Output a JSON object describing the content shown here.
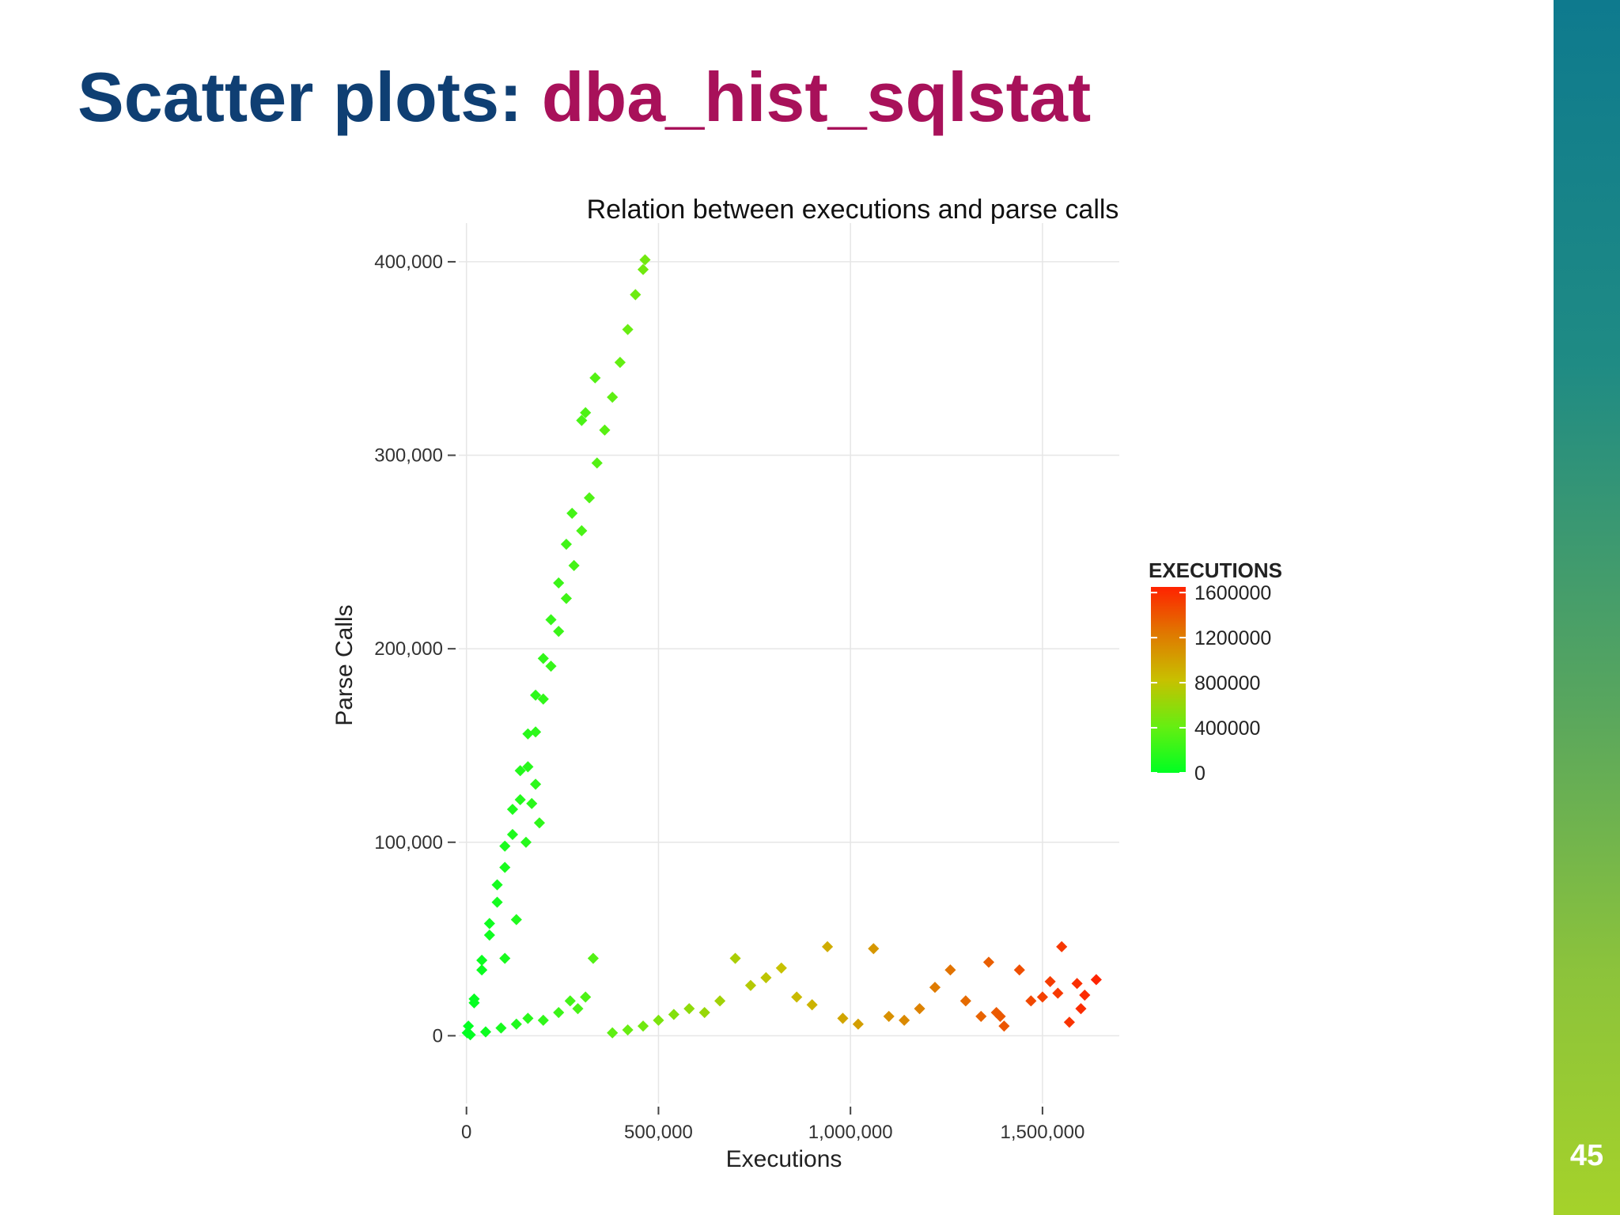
{
  "slide": {
    "title_part1": "Scatter plots: ",
    "title_part2": "dba_hist_sqlstat",
    "page_number": "45",
    "colors": {
      "title_dark": "#0f3f73",
      "title_accent": "#a8115a"
    }
  },
  "chart_data": {
    "type": "scatter",
    "title": "Relation between executions and parse calls",
    "xlabel": "Executions",
    "ylabel": "Parse Calls",
    "xlim": [
      -20000,
      1700000
    ],
    "ylim": [
      -35000,
      420000
    ],
    "xticks": [
      0,
      500000,
      1000000,
      1500000
    ],
    "xtick_labels": [
      "0",
      "500,000",
      "1,000,000",
      "1,500,000"
    ],
    "yticks": [
      0,
      100000,
      200000,
      300000,
      400000
    ],
    "ytick_labels": [
      "0",
      "100,000",
      "200,000",
      "300,000",
      "400,000"
    ],
    "grid": true,
    "legend": {
      "title": "EXECUTIONS",
      "position": "right",
      "range": [
        0,
        1650000
      ],
      "ticks": [
        0,
        400000,
        800000,
        1200000,
        1600000
      ],
      "tick_labels": [
        "0",
        "400000",
        "800000",
        "1200000",
        "1600000"
      ],
      "colors": [
        "#00ff22",
        "#66ee11",
        "#c8c000",
        "#e07800",
        "#ff2200"
      ]
    },
    "series": [
      {
        "description_points": "upper steep branch, parse calls roughly 0.87 x executions",
        "x": [
          2000,
          20000,
          40000,
          60000,
          80000,
          100000,
          120000,
          140000,
          160000,
          180000,
          200000,
          220000,
          240000,
          260000,
          280000,
          300000,
          320000,
          340000,
          360000,
          380000,
          400000,
          420000,
          440000,
          460000,
          465000,
          300000,
          310000,
          335000
        ],
        "y": [
          1500,
          17000,
          34000,
          52000,
          69000,
          87000,
          104000,
          122000,
          139000,
          157000,
          174000,
          191000,
          209000,
          226000,
          243000,
          261000,
          278000,
          296000,
          313000,
          330000,
          348000,
          365000,
          383000,
          396000,
          401000,
          318000,
          322000,
          340000
        ]
      },
      {
        "description_points": "lower steep branch, parse calls roughly 0.98 x executions",
        "x": [
          5000,
          20000,
          40000,
          60000,
          80000,
          100000,
          120000,
          140000,
          160000,
          180000,
          200000,
          220000,
          240000,
          260000,
          275000,
          100000,
          130000,
          155000,
          170000,
          180000,
          190000
        ],
        "y": [
          5000,
          19000,
          39000,
          58000,
          78000,
          98000,
          117000,
          137000,
          156000,
          176000,
          195000,
          215000,
          234000,
          254000,
          270000,
          40000,
          60000,
          100000,
          120000,
          130000,
          110000
        ]
      },
      {
        "description_points": "horizontal band near zero parse calls",
        "x": [
          10000,
          50000,
          90000,
          130000,
          160000,
          200000,
          240000,
          270000,
          290000,
          310000,
          330000,
          380000,
          420000,
          460000,
          500000,
          540000,
          580000,
          620000,
          660000,
          700000,
          740000,
          780000,
          820000,
          860000,
          900000,
          940000,
          980000,
          1020000,
          1060000,
          1100000,
          1140000,
          1180000,
          1220000,
          1260000,
          1300000,
          1340000,
          1380000
        ],
        "y": [
          500,
          2000,
          4000,
          6000,
          9000,
          8000,
          12000,
          18000,
          14000,
          20000,
          40000,
          1500,
          3000,
          5000,
          8000,
          11000,
          14000,
          12000,
          18000,
          40000,
          26000,
          30000,
          35000,
          20000,
          16000,
          46000,
          9000,
          6000,
          45000,
          10000,
          8000,
          14000,
          25000,
          34000,
          18000,
          10000,
          12000
        ]
      },
      {
        "description_points": "scattered points at high executions",
        "x": [
          1400000,
          1440000,
          1470000,
          1500000,
          1520000,
          1540000,
          1550000,
          1570000,
          1590000,
          1600000,
          1610000,
          1640000,
          1360000,
          1390000
        ],
        "y": [
          5000,
          34000,
          18000,
          20000,
          28000,
          22000,
          46000,
          7000,
          27000,
          14000,
          21000,
          29000,
          38000,
          10000
        ]
      }
    ]
  }
}
